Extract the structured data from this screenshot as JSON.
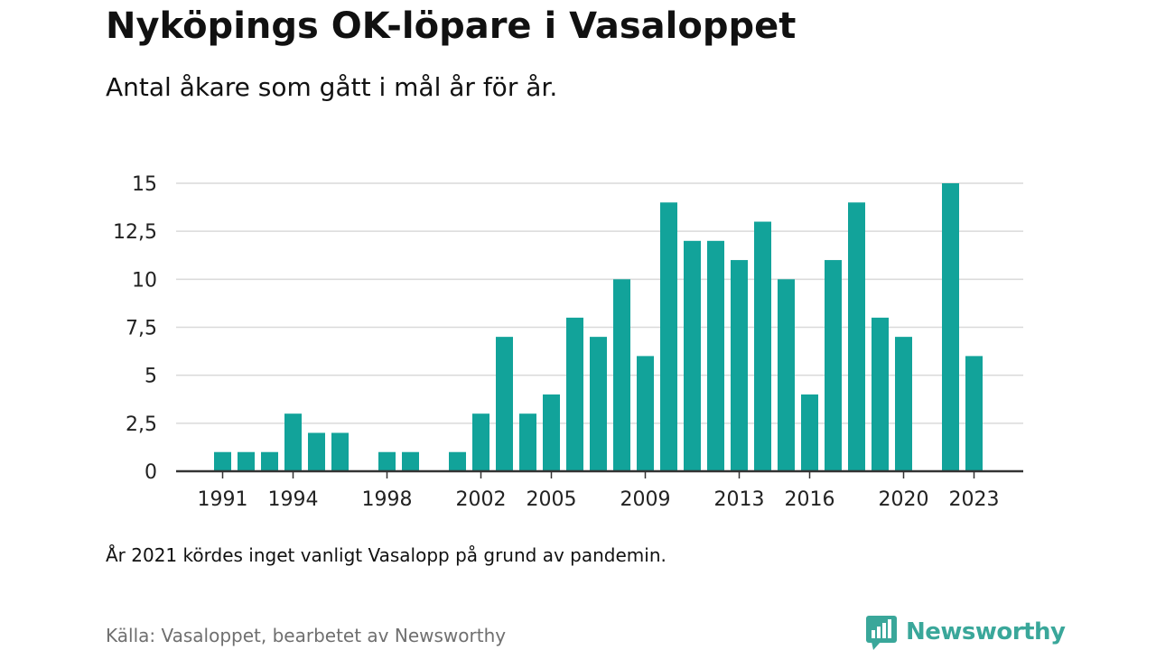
{
  "header": {
    "title": "Nyköpings OK-löpare i Vasaloppet",
    "subtitle": "Antal åkare som gått i mål år för år."
  },
  "footer": {
    "note": "År 2021 kördes inget vanligt Vasalopp på grund av pandemin.",
    "source": "Källa: Vasaloppet, bearbetet av Newsworthy",
    "brand": "Newsworthy"
  },
  "colors": {
    "bar": "#12a39a",
    "brand": "#3aa79a",
    "grid": "#d9d9d9",
    "axis": "#333333"
  },
  "chart_data": {
    "type": "bar",
    "title": "Nyköpings OK-löpare i Vasaloppet",
    "subtitle": "Antal åkare som gått i mål år för år.",
    "xlabel": "",
    "ylabel": "",
    "x": [
      1991,
      1992,
      1993,
      1994,
      1995,
      1996,
      1997,
      1998,
      1999,
      2000,
      2001,
      2002,
      2003,
      2004,
      2005,
      2006,
      2007,
      2008,
      2009,
      2010,
      2011,
      2012,
      2013,
      2014,
      2015,
      2016,
      2017,
      2018,
      2019,
      2020,
      2021,
      2022,
      2023
    ],
    "values": [
      1,
      1,
      1,
      3,
      2,
      2,
      0,
      1,
      1,
      0,
      1,
      3,
      7,
      3,
      4,
      8,
      7,
      10,
      6,
      14,
      12,
      12,
      11,
      13,
      10,
      4,
      11,
      14,
      8,
      7,
      0,
      15,
      6
    ],
    "ylim": [
      0,
      15
    ],
    "y_ticks": [
      0,
      2.5,
      5,
      7.5,
      10,
      12.5,
      15
    ],
    "y_tick_labels": [
      "0",
      "2,5",
      "5",
      "7,5",
      "10",
      "12,5",
      "15"
    ],
    "x_ticks": [
      1991,
      1994,
      1998,
      2002,
      2005,
      2009,
      2013,
      2016,
      2020,
      2023
    ],
    "x_tick_labels": [
      "1991",
      "1994",
      "1998",
      "2002",
      "2005",
      "2009",
      "2013",
      "2016",
      "2020",
      "2023"
    ],
    "grid": true,
    "legend": "none"
  }
}
